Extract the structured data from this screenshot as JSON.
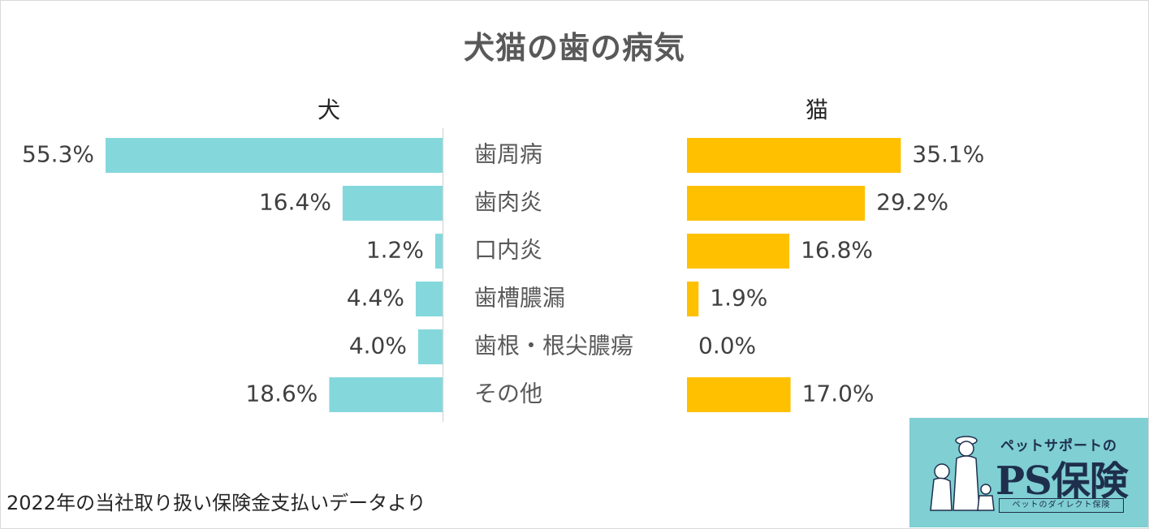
{
  "chart_data": {
    "type": "bar",
    "title": "犬猫の歯の病気",
    "categories": [
      "歯周病",
      "歯肉炎",
      "口内炎",
      "歯槽膿漏",
      "歯根・根尖膿瘍",
      "その他"
    ],
    "series": [
      {
        "name": "犬",
        "values": [
          55.3,
          16.4,
          1.2,
          4.4,
          4.0,
          18.6
        ],
        "labels": [
          "55.3%",
          "16.4%",
          "1.2%",
          "4.4%",
          "4.0%",
          "18.6%"
        ],
        "color": "#84d8dc"
      },
      {
        "name": "猫",
        "values": [
          35.1,
          29.2,
          16.8,
          1.9,
          0.0,
          17.0
        ],
        "labels": [
          "35.1%",
          "29.2%",
          "16.8%",
          "1.9%",
          "0.0%",
          "17.0%"
        ],
        "color": "#ffc000"
      }
    ],
    "xlim": [
      0,
      60
    ],
    "legend": "above each panel",
    "grid": false
  },
  "footnote": "2022年の当社取り扱い保険金支払いデータより",
  "logo": {
    "tagline": "ペットサポートの",
    "name": "PS保険",
    "subtitle": "ペットのダイレクト保険"
  }
}
